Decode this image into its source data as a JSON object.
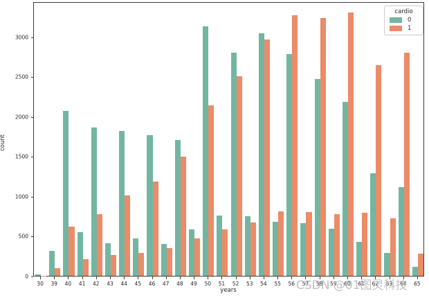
{
  "chart_data": {
    "type": "bar",
    "title": "",
    "xlabel": "years",
    "ylabel": "count",
    "categories": [
      "30",
      "39",
      "40",
      "41",
      "42",
      "43",
      "44",
      "45",
      "46",
      "47",
      "48",
      "49",
      "50",
      "51",
      "52",
      "53",
      "54",
      "55",
      "56",
      "57",
      "58",
      "59",
      "60",
      "61",
      "62",
      "63",
      "64",
      "65"
    ],
    "series": [
      {
        "name": "0",
        "color": "#72b6a2",
        "values": [
          18,
          310,
          2070,
          550,
          1860,
          410,
          1820,
          470,
          1760,
          400,
          1700,
          585,
          3130,
          760,
          2800,
          750,
          3040,
          680,
          2780,
          660,
          2470,
          590,
          2180,
          425,
          1290,
          285,
          1110,
          115
        ]
      },
      {
        "name": "1",
        "color": "#eb8b68",
        "values": [
          4,
          95,
          620,
          205,
          770,
          260,
          1010,
          290,
          1180,
          345,
          1490,
          465,
          2140,
          580,
          2500,
          665,
          2960,
          810,
          3270,
          800,
          3230,
          770,
          3300,
          790,
          2640,
          720,
          2800,
          280
        ]
      }
    ],
    "y_ticks": [
      0,
      500,
      1000,
      1500,
      2000,
      2500,
      3000
    ],
    "ylim": [
      0,
      3440
    ],
    "grid": false,
    "legend": {
      "title": "cardio",
      "position": "upper right",
      "entries": [
        {
          "label": "0",
          "color": "#72b6a2"
        },
        {
          "label": "1",
          "color": "#eb8b68"
        }
      ]
    }
  },
  "watermark": {
    "text": "CSDN @01图灵科技"
  }
}
